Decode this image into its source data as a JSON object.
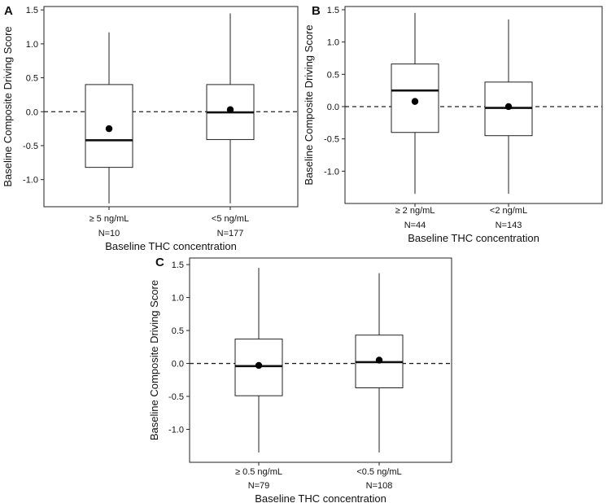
{
  "chart_data": [
    {
      "type": "box",
      "panel": "A",
      "xlabel": "Baseline THC concentration",
      "ylabel": "Baseline Composite Driving Score",
      "ylim": [
        -1.4,
        1.55
      ],
      "yticks": [
        "-1.0",
        "-0.5",
        "0.0",
        "0.5",
        "1.0",
        "1.5"
      ],
      "reference_line": 0,
      "categories": [
        {
          "label": "≥ 5 ng/mL",
          "n": "N=10",
          "min": -1.35,
          "q1": -0.82,
          "median": -0.42,
          "q3": 0.4,
          "max": 1.17,
          "mean": -0.25
        },
        {
          "label": "<5 ng/mL",
          "n": "N=177",
          "min": -1.35,
          "q1": -0.41,
          "median": -0.01,
          "q3": 0.4,
          "max": 1.45,
          "mean": 0.03
        }
      ]
    },
    {
      "type": "box",
      "panel": "B",
      "xlabel": "Baseline THC concentration",
      "ylabel": "Baseline Composite Driving Score",
      "ylim": [
        -1.5,
        1.55
      ],
      "yticks": [
        "-1.0",
        "-0.5",
        "0.0",
        "0.5",
        "1.0",
        "1.5"
      ],
      "reference_line": 0,
      "categories": [
        {
          "label": "≥ 2 ng/mL",
          "n": "N=44",
          "min": -1.35,
          "q1": -0.4,
          "median": 0.25,
          "q3": 0.66,
          "max": 1.45,
          "mean": 0.08
        },
        {
          "label": "<2 ng/mL",
          "n": "N=143",
          "min": -1.35,
          "q1": -0.45,
          "median": -0.02,
          "q3": 0.38,
          "max": 1.35,
          "mean": 0.0
        }
      ]
    },
    {
      "type": "box",
      "panel": "C",
      "xlabel": "Baseline THC concentration",
      "ylabel": "Baseline Composite Driving Score",
      "ylim": [
        -1.5,
        1.6
      ],
      "yticks": [
        "-1.0",
        "-0.5",
        "0.0",
        "0.5",
        "1.0",
        "1.5"
      ],
      "reference_line": 0,
      "categories": [
        {
          "label": "≥ 0.5 ng/mL",
          "n": "N=79",
          "min": -1.35,
          "q1": -0.49,
          "median": -0.04,
          "q3": 0.37,
          "max": 1.45,
          "mean": -0.03
        },
        {
          "label": "<0.5 ng/mL",
          "n": "N=108",
          "min": -1.35,
          "q1": -0.37,
          "median": 0.02,
          "q3": 0.43,
          "max": 1.37,
          "mean": 0.05
        }
      ]
    }
  ]
}
